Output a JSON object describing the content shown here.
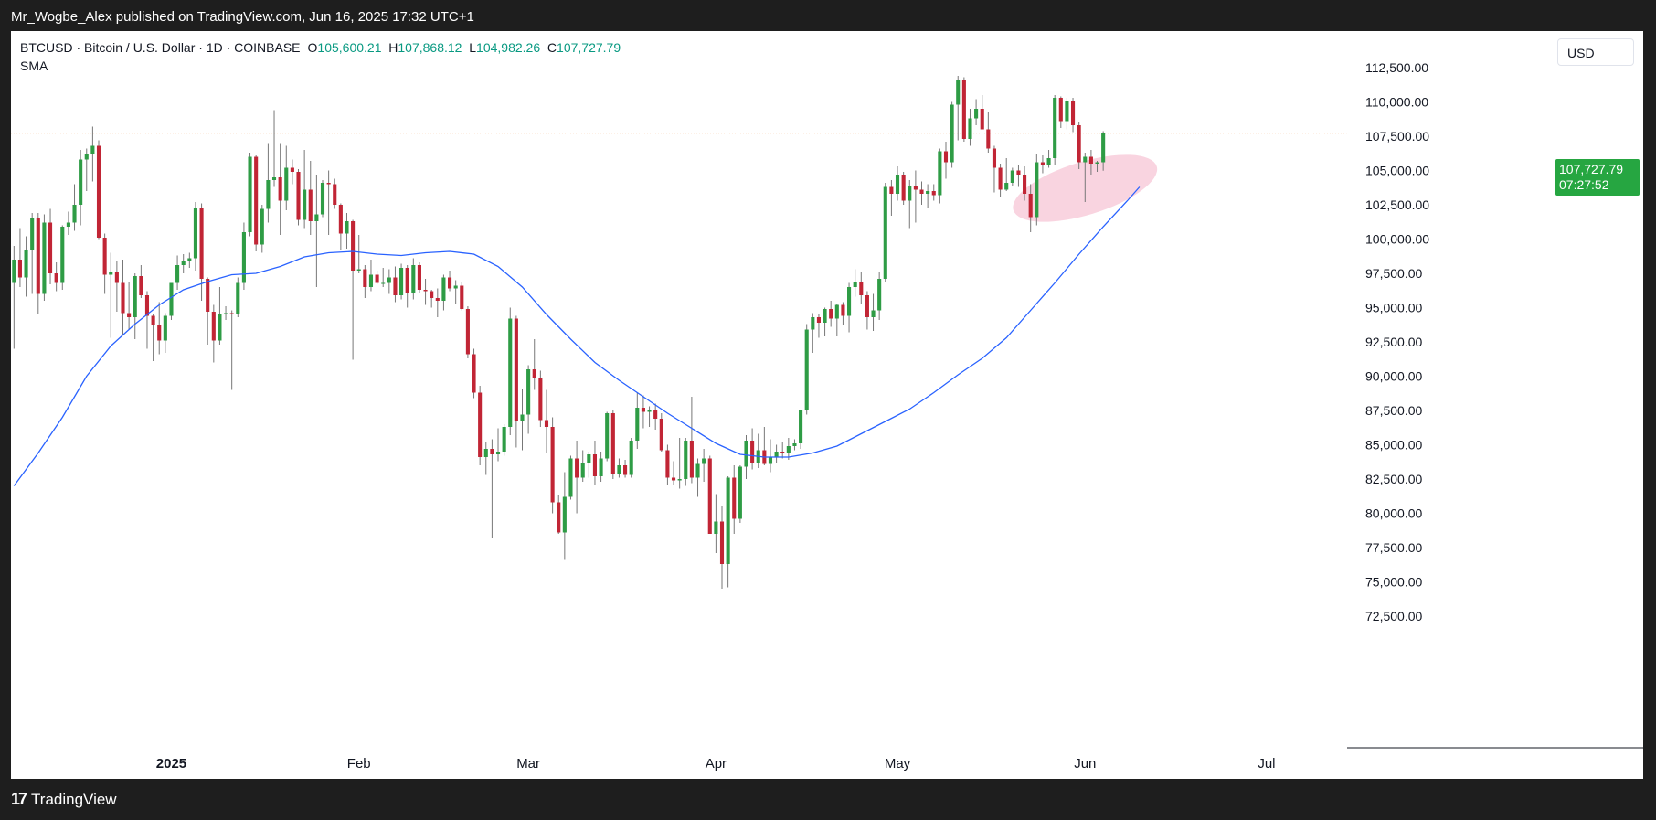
{
  "header": {
    "publisher_line": "Mr_Wogbe_Alex published on TradingView.com, Jun 16, 2025 17:32 UTC+1"
  },
  "legend": {
    "symbol_line": "BTCUSD · Bitcoin / U.S. Dollar · 1D · COINBASE",
    "open_label": "O",
    "open_value": "105,600.21",
    "high_label": "H",
    "high_value": "107,868.12",
    "low_label": "L",
    "low_value": "104,982.26",
    "close_label": "C",
    "close_value": "107,727.79",
    "indicator": "SMA"
  },
  "currency_button": "USD",
  "price_badge": {
    "price": "107,727.79",
    "countdown": "07:27:52"
  },
  "footer": {
    "brand": "TradingView",
    "logo_mark": "17"
  },
  "colors": {
    "up": "#2e9c45",
    "down": "#c12535",
    "sma": "#2962ff",
    "highlight": "#f7c6d6",
    "price_line": "#f08c3c"
  },
  "chart_data": {
    "type": "candlestick",
    "symbol": "BTCUSD",
    "interval": "1D",
    "ylim": [
      70500,
      114500
    ],
    "yticks": [
      72500,
      75000,
      77500,
      80000,
      82500,
      85000,
      87500,
      90000,
      92500,
      95000,
      97500,
      100000,
      102500,
      105000,
      107500,
      110000,
      112500
    ],
    "ytick_labels": [
      "72,500.00",
      "75,000.00",
      "77,500.00",
      "80,000.00",
      "82,500.00",
      "85,000.00",
      "87,500.00",
      "90,000.00",
      "92,500.00",
      "95,000.00",
      "97,500.00",
      "100,000.00",
      "102,500.00",
      "105,000.00",
      "107,500.00",
      "110,000.00",
      "112,500.00"
    ],
    "x_axis": [
      {
        "label": "2025",
        "day": 26,
        "bold": true
      },
      {
        "label": "Feb",
        "day": 57
      },
      {
        "label": "Mar",
        "day": 85
      },
      {
        "label": "Apr",
        "day": 116
      },
      {
        "label": "May",
        "day": 146
      },
      {
        "label": "Jun",
        "day": 177
      },
      {
        "label": "Jul",
        "day": 207
      }
    ],
    "x_range_days": [
      -0.5,
      220
    ],
    "last_price": 107727.79,
    "annotation": {
      "type": "ellipse",
      "center": [
        "2025-06-13",
        103700
      ],
      "note": "highlight near SMA"
    },
    "candles": [
      [
        96800,
        99500,
        92000,
        98500
      ],
      [
        98500,
        100800,
        96500,
        97200
      ],
      [
        97200,
        100200,
        95800,
        99200
      ],
      [
        99200,
        101900,
        96000,
        101500
      ],
      [
        101500,
        101900,
        94500,
        96000
      ],
      [
        96000,
        101800,
        95500,
        101200
      ],
      [
        101200,
        102200,
        96700,
        97500
      ],
      [
        97500,
        98300,
        96200,
        96800
      ],
      [
        96800,
        101000,
        96300,
        100900
      ],
      [
        100900,
        102000,
        100300,
        101200
      ],
      [
        101200,
        104000,
        100600,
        102500
      ],
      [
        102500,
        106500,
        101000,
        105800
      ],
      [
        105800,
        106600,
        103500,
        106200
      ],
      [
        106200,
        108200,
        104200,
        106800
      ],
      [
        106800,
        107200,
        100000,
        100100
      ],
      [
        100100,
        100400,
        96000,
        97400
      ],
      [
        97400,
        99000,
        92800,
        97600
      ],
      [
        97600,
        98400,
        94700,
        96800
      ],
      [
        96800,
        98500,
        93000,
        94600
      ],
      [
        94600,
        96900,
        93400,
        94300
      ],
      [
        94300,
        97500,
        92700,
        97300
      ],
      [
        97300,
        98100,
        95700,
        95900
      ],
      [
        95900,
        96200,
        92000,
        94400
      ],
      [
        94400,
        94500,
        91100,
        93700
      ],
      [
        93700,
        95400,
        91600,
        92600
      ],
      [
        92600,
        94600,
        91700,
        94400
      ],
      [
        94400,
        96800,
        94100,
        96800
      ],
      [
        96800,
        98800,
        96300,
        98100
      ],
      [
        98100,
        98900,
        97500,
        98400
      ],
      [
        98400,
        99000,
        97900,
        98600
      ],
      [
        98600,
        102700,
        97700,
        102300
      ],
      [
        102300,
        102600,
        95500,
        97100
      ],
      [
        97100,
        97200,
        92300,
        94700
      ],
      [
        94700,
        95200,
        91000,
        92600
      ],
      [
        92600,
        96500,
        92300,
        94500
      ],
      [
        94500,
        95100,
        94100,
        94600
      ],
      [
        94600,
        94800,
        89000,
        94500
      ],
      [
        94500,
        97200,
        94300,
        96800
      ],
      [
        96800,
        101200,
        96300,
        100500
      ],
      [
        100500,
        106300,
        100200,
        106000
      ],
      [
        106000,
        106100,
        99100,
        99600
      ],
      [
        99600,
        102500,
        99000,
        102200
      ],
      [
        102200,
        107000,
        101200,
        104300
      ],
      [
        104300,
        109400,
        103800,
        104500
      ],
      [
        104500,
        107000,
        100300,
        102800
      ],
      [
        102800,
        106800,
        102100,
        105200
      ],
      [
        105200,
        105800,
        104000,
        104900
      ],
      [
        104900,
        105100,
        101000,
        101400
      ],
      [
        101400,
        106500,
        100800,
        103600
      ],
      [
        103600,
        105700,
        100300,
        101300
      ],
      [
        101300,
        104700,
        96500,
        101800
      ],
      [
        101800,
        104300,
        101600,
        104100
      ],
      [
        104100,
        105000,
        100300,
        104000
      ],
      [
        104000,
        104400,
        102200,
        102500
      ],
      [
        102500,
        102600,
        99200,
        100400
      ],
      [
        100400,
        101900,
        99300,
        101300
      ],
      [
        101300,
        101400,
        91200,
        97700
      ],
      [
        97700,
        100300,
        97500,
        97800
      ],
      [
        97800,
        98100,
        95700,
        96500
      ],
      [
        96500,
        98500,
        96200,
        97400
      ],
      [
        97400,
        97700,
        96700,
        96800
      ],
      [
        96800,
        97900,
        96500,
        96800
      ],
      [
        96800,
        97800,
        96000,
        97200
      ],
      [
        97200,
        98000,
        95400,
        95900
      ],
      [
        95900,
        98200,
        95600,
        97900
      ],
      [
        97900,
        98100,
        95000,
        96100
      ],
      [
        96100,
        98600,
        95600,
        98100
      ],
      [
        98100,
        98300,
        96100,
        96300
      ],
      [
        96300,
        97100,
        95200,
        96200
      ],
      [
        96200,
        96300,
        95000,
        95700
      ],
      [
        95700,
        96400,
        94300,
        95500
      ],
      [
        95500,
        97400,
        94800,
        97200
      ],
      [
        97200,
        97700,
        96200,
        96400
      ],
      [
        96400,
        97000,
        95300,
        96600
      ],
      [
        96600,
        96900,
        94800,
        94900
      ],
      [
        94900,
        95100,
        91300,
        91600
      ],
      [
        91600,
        92000,
        88400,
        88800
      ],
      [
        88800,
        89300,
        83500,
        84100
      ],
      [
        84100,
        85200,
        82800,
        84700
      ],
      [
        84700,
        85400,
        78200,
        84300
      ],
      [
        84300,
        86200,
        83800,
        84500
      ],
      [
        84500,
        86500,
        84200,
        86300
      ],
      [
        86300,
        95000,
        85700,
        94200
      ],
      [
        94200,
        94400,
        84800,
        86700
      ],
      [
        86700,
        89100,
        84600,
        87200
      ],
      [
        87200,
        90800,
        85800,
        90500
      ],
      [
        90500,
        92700,
        89000,
        89900
      ],
      [
        89900,
        90400,
        86300,
        86800
      ],
      [
        86800,
        89000,
        84400,
        86300
      ],
      [
        86300,
        87000,
        80000,
        80800
      ],
      [
        80800,
        81300,
        78500,
        78600
      ],
      [
        78600,
        83000,
        76600,
        81200
      ],
      [
        81200,
        84200,
        81000,
        84000
      ],
      [
        84000,
        85300,
        80000,
        82600
      ],
      [
        82600,
        84600,
        82300,
        83700
      ],
      [
        83700,
        84500,
        82600,
        84300
      ],
      [
        84300,
        85300,
        82100,
        82700
      ],
      [
        82700,
        84500,
        82300,
        84000
      ],
      [
        84000,
        87400,
        83800,
        87300
      ],
      [
        87300,
        87500,
        82500,
        82900
      ],
      [
        82900,
        84000,
        82600,
        83500
      ],
      [
        83500,
        83900,
        82600,
        82800
      ],
      [
        82800,
        85500,
        82600,
        85300
      ],
      [
        85300,
        88800,
        84700,
        87700
      ],
      [
        87700,
        88600,
        86200,
        87400
      ],
      [
        87400,
        87800,
        86300,
        87500
      ],
      [
        87500,
        88000,
        86100,
        86900
      ],
      [
        86900,
        87300,
        84500,
        84600
      ],
      [
        84600,
        85000,
        82100,
        82600
      ],
      [
        82600,
        83800,
        82100,
        82400
      ],
      [
        82400,
        85500,
        81800,
        82500
      ],
      [
        82500,
        85500,
        82000,
        85300
      ],
      [
        85300,
        88500,
        82200,
        82600
      ],
      [
        82600,
        84000,
        81200,
        83600
      ],
      [
        83600,
        84700,
        82300,
        84000
      ],
      [
        84000,
        84200,
        78500,
        78500
      ],
      [
        78500,
        81400,
        77100,
        79400
      ],
      [
        79400,
        80500,
        74500,
        76300
      ],
      [
        76300,
        82700,
        74600,
        82600
      ],
      [
        82600,
        83500,
        78500,
        79600
      ],
      [
        79600,
        83500,
        79300,
        83400
      ],
      [
        83400,
        85700,
        82500,
        85300
      ],
      [
        85300,
        86200,
        83200,
        83700
      ],
      [
        83700,
        85800,
        83300,
        84600
      ],
      [
        84600,
        86300,
        83500,
        83600
      ],
      [
        83600,
        85400,
        83000,
        84100
      ],
      [
        84100,
        85000,
        83700,
        84500
      ],
      [
        84500,
        85200,
        84000,
        84400
      ],
      [
        84400,
        85500,
        83900,
        84900
      ],
      [
        84900,
        85400,
        84600,
        85100
      ],
      [
        85100,
        87500,
        84700,
        87500
      ],
      [
        87500,
        93800,
        87200,
        93400
      ],
      [
        93400,
        94600,
        91700,
        94300
      ],
      [
        94300,
        94500,
        92800,
        93900
      ],
      [
        93900,
        95000,
        92900,
        94900
      ],
      [
        94900,
        95500,
        93600,
        94200
      ],
      [
        94200,
        95300,
        92900,
        95200
      ],
      [
        95200,
        95400,
        93700,
        94400
      ],
      [
        94400,
        96800,
        93200,
        96500
      ],
      [
        96500,
        97800,
        95800,
        96900
      ],
      [
        96900,
        97600,
        95300,
        95900
      ],
      [
        95900,
        96200,
        93400,
        94300
      ],
      [
        94300,
        96000,
        93300,
        94800
      ],
      [
        94800,
        97600,
        94100,
        97100
      ],
      [
        97100,
        104100,
        96900,
        103800
      ],
      [
        103800,
        104300,
        101700,
        103300
      ],
      [
        103300,
        105300,
        102800,
        104700
      ],
      [
        104700,
        104900,
        102500,
        102800
      ],
      [
        102800,
        104300,
        100800,
        103900
      ],
      [
        103900,
        105000,
        101200,
        103600
      ],
      [
        103600,
        104200,
        102500,
        103300
      ],
      [
        103300,
        104000,
        102300,
        103500
      ],
      [
        103500,
        104000,
        102800,
        103200
      ],
      [
        103200,
        106600,
        102600,
        106400
      ],
      [
        106400,
        107100,
        104400,
        105600
      ],
      [
        105600,
        110000,
        105200,
        109800
      ],
      [
        109800,
        111900,
        107200,
        111600
      ],
      [
        111600,
        111800,
        107100,
        107300
      ],
      [
        107300,
        109500,
        106800,
        108800
      ],
      [
        108800,
        110200,
        108300,
        109500
      ],
      [
        109500,
        110500,
        108000,
        108000
      ],
      [
        108000,
        109300,
        106300,
        106600
      ],
      [
        106600,
        106800,
        103400,
        105200
      ],
      [
        105200,
        105500,
        103100,
        103600
      ],
      [
        103600,
        105900,
        103500,
        104100
      ],
      [
        104100,
        105200,
        103900,
        105000
      ],
      [
        105000,
        105400,
        103800,
        104700
      ],
      [
        104700,
        105300,
        102800,
        103300
      ],
      [
        103300,
        104000,
        100500,
        101600
      ],
      [
        101600,
        106200,
        101000,
        105600
      ],
      [
        105600,
        106100,
        104800,
        105400
      ],
      [
        105400,
        106500,
        105200,
        105900
      ],
      [
        105900,
        110500,
        105400,
        110300
      ],
      [
        110300,
        110400,
        108100,
        108600
      ],
      [
        108600,
        110300,
        108000,
        110100
      ],
      [
        110100,
        110300,
        107800,
        108300
      ],
      [
        108300,
        108500,
        105100,
        105600
      ],
      [
        105600,
        106300,
        102700,
        106000
      ],
      [
        106000,
        106500,
        104700,
        105500
      ],
      [
        105500,
        105700,
        104900,
        105600
      ],
      [
        105600,
        107868.12,
        104982.26,
        107727.79
      ]
    ],
    "sma": {
      "name": "SMA",
      "x_days": [
        0,
        4,
        8,
        12,
        16,
        20,
        24,
        28,
        32,
        36,
        40,
        44,
        48,
        52,
        56,
        60,
        64,
        68,
        72,
        76,
        80,
        84,
        88,
        92,
        96,
        100,
        104,
        108,
        112,
        116,
        120,
        124,
        128,
        132,
        136,
        140,
        144,
        148,
        152,
        156,
        160,
        164,
        168,
        172,
        176,
        180,
        184,
        186
      ],
      "values": [
        82000,
        84400,
        87000,
        90000,
        92200,
        93800,
        95200,
        96300,
        96900,
        97400,
        97500,
        98000,
        98700,
        99000,
        99100,
        98900,
        98800,
        99000,
        99100,
        98900,
        98000,
        96500,
        94500,
        92700,
        91000,
        89700,
        88500,
        87300,
        86200,
        85100,
        84300,
        84100,
        84100,
        84400,
        84900,
        85800,
        86700,
        87600,
        88800,
        90100,
        91300,
        92800,
        94800,
        96800,
        98900,
        100900,
        102800,
        103800
      ]
    }
  }
}
